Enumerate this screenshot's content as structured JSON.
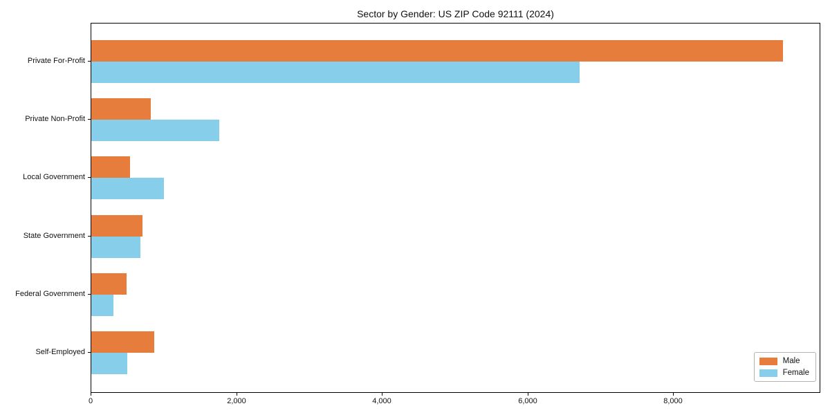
{
  "title": "Sector by Gender: US ZIP Code 92111 (2024)",
  "chart_data": {
    "type": "bar",
    "orientation": "horizontal",
    "title": "Sector by Gender: US ZIP Code 92111 (2024)",
    "categories": [
      "Private For-Profit",
      "Private Non-Profit",
      "Local Government",
      "State Government",
      "Federal Government",
      "Self-Employed"
    ],
    "series": [
      {
        "name": "Male",
        "color": "#e77d3c",
        "values": [
          9500,
          820,
          530,
          700,
          480,
          860
        ]
      },
      {
        "name": "Female",
        "color": "#87ceeb",
        "values": [
          6700,
          1760,
          1000,
          670,
          300,
          490
        ]
      }
    ],
    "xlabel": "",
    "ylabel": "",
    "xlim": [
      0,
      10000
    ],
    "xticks": [
      0,
      2000,
      4000,
      6000,
      8000
    ],
    "xtick_labels": [
      "0",
      "2,000",
      "4,000",
      "6,000",
      "8,000"
    ],
    "grid": false,
    "legend": {
      "position": "lower-right",
      "entries": [
        "Male",
        "Female"
      ]
    },
    "colors": {
      "male": "#e77d3c",
      "female": "#87ceeb",
      "axis": "#000000",
      "background": "#ffffff"
    }
  }
}
